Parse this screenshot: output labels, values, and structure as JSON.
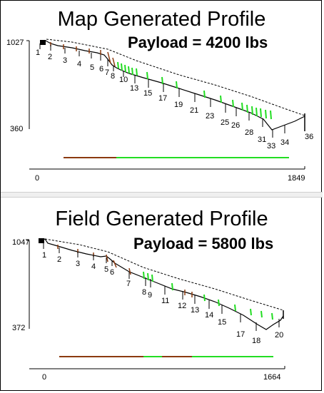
{
  "profiles": [
    {
      "title": "Map Generated Profile",
      "payload": "Payload = 4200 lbs",
      "y_max_label": "1027",
      "y_min_label": "360",
      "x_min_label": "0",
      "x_max_label": "1849",
      "stations": [
        "1",
        "2",
        "3",
        "4",
        "5",
        "6",
        "7",
        "8",
        "10",
        "13",
        "15",
        "17",
        "19",
        "21",
        "23",
        "25",
        "26",
        "28",
        "31",
        "33",
        "34",
        "36"
      ],
      "colors": {
        "terrain": "#000000",
        "clearance": "#000000",
        "brown": "#8b3a0f",
        "green": "#22dd22"
      }
    },
    {
      "title": "Field Generated Profile",
      "payload": "Payload = 5800 lbs",
      "y_max_label": "1047",
      "y_min_label": "372",
      "x_min_label": "0",
      "x_max_label": "1664",
      "stations": [
        "1",
        "2",
        "3",
        "4",
        "5",
        "6",
        "7",
        "8",
        "9",
        "11",
        "12",
        "13",
        "14",
        "15",
        "17",
        "18",
        "20"
      ],
      "colors": {
        "terrain": "#000000",
        "clearance": "#000000",
        "brown": "#8b3a0f",
        "green": "#22dd22"
      }
    }
  ]
}
